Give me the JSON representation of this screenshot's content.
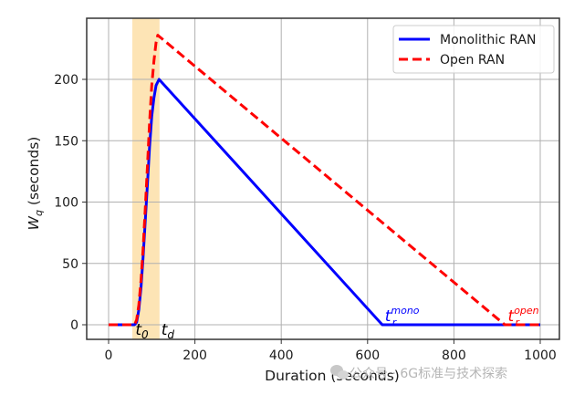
{
  "chart_data": {
    "type": "line",
    "title": "",
    "xlabel": "Duration (seconds)",
    "ylabel": "W_q (seconds)",
    "ylabel_main": "W",
    "ylabel_sub": "q",
    "ylabel_rest": " (seconds)",
    "xlim": [
      -50,
      1040
    ],
    "ylim": [
      -12,
      250
    ],
    "xticks": [
      0,
      200,
      400,
      600,
      800,
      1000
    ],
    "yticks": [
      0,
      50,
      100,
      150,
      200
    ],
    "grid": true,
    "legend_position": "upper right",
    "shaded_region": {
      "x_start": 55,
      "x_end": 118,
      "color": "#fddfa8"
    },
    "series": [
      {
        "name": "Monolithic RAN",
        "color": "#0000ff",
        "style": "solid",
        "x": [
          0,
          60,
          65,
          70,
          75,
          80,
          85,
          90,
          95,
          100,
          105,
          110,
          117,
          634,
          1000
        ],
        "values": [
          0,
          0,
          2,
          12,
          30,
          55,
          85,
          115,
          145,
          170,
          185,
          195,
          200,
          0,
          0
        ]
      },
      {
        "name": "Open RAN",
        "color": "#ff0000",
        "style": "dashed",
        "x": [
          0,
          60,
          65,
          70,
          75,
          80,
          85,
          90,
          95,
          100,
          105,
          110,
          114,
          918,
          1000
        ],
        "values": [
          0,
          0,
          4,
          16,
          36,
          62,
          95,
          130,
          165,
          195,
          215,
          230,
          236,
          0,
          0
        ]
      }
    ],
    "annotations": [
      {
        "text": "t",
        "sub": "0",
        "x": 62,
        "y": -8,
        "color": "#000000"
      },
      {
        "text": "t",
        "sub": "d",
        "x": 122,
        "y": -8,
        "color": "#000000"
      },
      {
        "text": "t",
        "sub": "r",
        "sup": "mono",
        "x": 640,
        "y": 3,
        "color": "#0000ff"
      },
      {
        "text": "t",
        "sub": "r",
        "sup": "open",
        "x": 925,
        "y": 3,
        "color": "#ff0000"
      }
    ]
  },
  "legend": {
    "items": [
      {
        "label": "Monolithic RAN"
      },
      {
        "label": "Open RAN"
      }
    ]
  },
  "watermark": {
    "text": "公众号 · 6G标准与技术探索"
  }
}
